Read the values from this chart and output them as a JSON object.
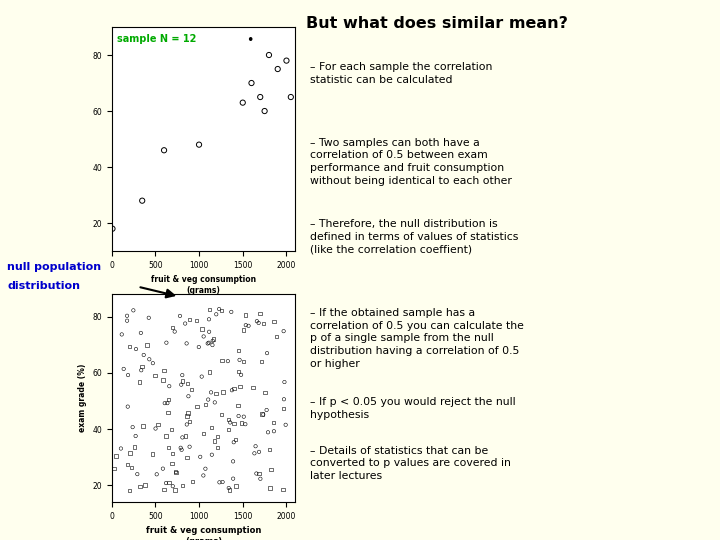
{
  "bg_color": "#ffffee",
  "title_text": "But what does similar mean?",
  "title_color": "#000000",
  "sample_label": "sample N = 12",
  "sample_label_color": "#00aa00",
  "null_label_line1": "null population",
  "null_label_line2": "distribution",
  "null_label_color": "#0000cc",
  "xlabel": "fruit & veg consumption\n(grams)",
  "ylabel": "exam grade (%)",
  "xlim": [
    0,
    2100
  ],
  "ylim1": [
    10,
    90
  ],
  "ylim2": [
    14,
    88
  ],
  "xticks": [
    0,
    500,
    1000,
    1500,
    2000
  ],
  "yticks1": [
    20,
    40,
    60,
    80
  ],
  "yticks2": [
    20,
    40,
    60,
    80
  ],
  "xs1": [
    10,
    350,
    600,
    1000,
    1500,
    1600,
    1700,
    1750,
    1800,
    1900,
    2000,
    2050
  ],
  "ys1": [
    18,
    28,
    46,
    48,
    63,
    70,
    65,
    60,
    80,
    75,
    78,
    65
  ],
  "bullets": [
    "For each sample the correlation\nstatistic can be calculated",
    "Two samples can both have a\ncorrelation of 0.5 between exam\nperformance and fruit consumption\nwithout being identical to each other",
    "Therefore, the null distribution is\ndefined in terms of values of statistics\n(like the correlation coeffient)",
    "If the obtained sample has a\ncorrelation of 0.5 you can calculate the\np of a single sample from the null\ndistribution having a correlation of 0.5\nor higher",
    "If p < 0.05 you would reject the null\nhypothesis",
    "Details of statistics that can be\nconverted to p values are covered in\nlater lectures"
  ],
  "seed2": 123,
  "n_null": 180
}
